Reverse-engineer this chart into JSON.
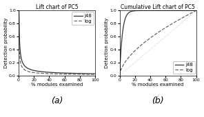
{
  "title_left": "Lift chart of PC5",
  "title_right": "Cumulative Lift chart of PC5",
  "xlabel": "% modules examined",
  "ylabel": "Detection probability",
  "label_a": "(a)",
  "label_b": "(b)",
  "legend_labels": [
    "j48",
    "log"
  ],
  "xlim": [
    0,
    100
  ],
  "ylim_left": [
    0.0,
    1.0
  ],
  "ylim_right": [
    0.0,
    1.0
  ],
  "xticks": [
    0,
    20,
    40,
    60,
    80,
    100
  ],
  "yticks": [
    0.0,
    0.2,
    0.4,
    0.6,
    0.8,
    1.0
  ],
  "background_color": "#ffffff",
  "line_color_j48": "#333333",
  "line_color_log": "#666666",
  "line_color_baseline": "#bbbbbb",
  "title_fontsize": 5.5,
  "axis_label_fontsize": 5.0,
  "tick_fontsize": 4.5,
  "legend_fontsize": 5.0,
  "sublabel_fontsize": 9
}
